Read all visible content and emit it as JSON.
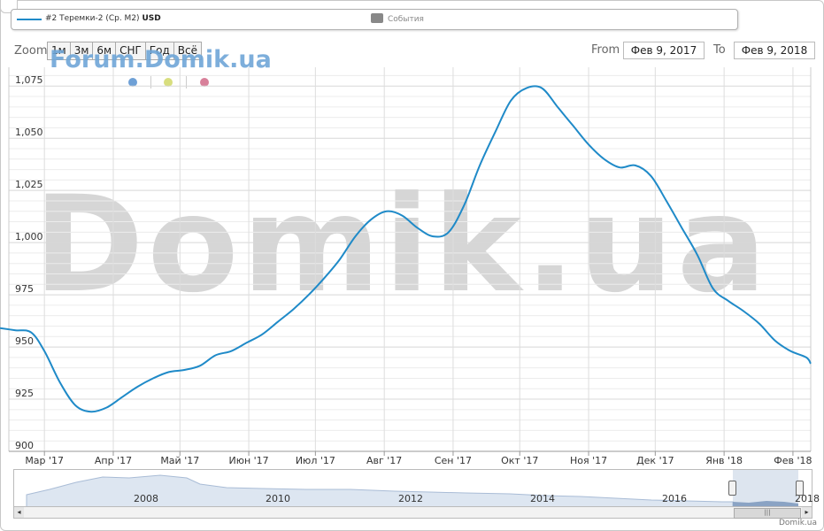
{
  "legend": {
    "series_label": "#2 Теремки-2 (Ср. М2)",
    "series_currency": "USD",
    "events_label": "События"
  },
  "zoom": {
    "label": "Zoom",
    "buttons": [
      "1м",
      "3м",
      "6м",
      "СНГ",
      "Год",
      "Всё"
    ]
  },
  "range": {
    "from_label": "From",
    "from_value": "Фев 9, 2017",
    "to_label": "To",
    "to_value": "Фев 9, 2018"
  },
  "watermark": {
    "small": "Forum.Domik.ua",
    "big": "Domik.ua"
  },
  "credit": "Domik.ua",
  "colors": {
    "series": "#1f8ac8",
    "dot_blue": "#6ea0d6",
    "dot_yellow": "#d8de7e",
    "dot_pink": "#d8809a",
    "grid": "#dddddd"
  },
  "navigator": {
    "year_labels": [
      "2008",
      "2010",
      "2012",
      "2014",
      "2016",
      "2018"
    ]
  },
  "chart_data": {
    "type": "line",
    "title": "",
    "xlabel": "",
    "ylabel": "",
    "ylim": [
      900,
      1084
    ],
    "yticks": [
      900,
      925,
      950,
      975,
      1000,
      1025,
      1050,
      1075
    ],
    "ytick_labels": [
      "900",
      "925",
      "950",
      "975",
      "1,000",
      "1,025",
      "1,050",
      "1,075"
    ],
    "xtick_labels": [
      "Мар '17",
      "Апр '17",
      "Май '17",
      "Июн '17",
      "Июл '17",
      "Авг '17",
      "Сен '17",
      "Окт '17",
      "Ноя '17",
      "Дек '17",
      "Янв '18",
      "Фев '18"
    ],
    "xtick_dates": [
      "2017-03-01",
      "2017-04-01",
      "2017-05-01",
      "2017-06-01",
      "2017-07-01",
      "2017-08-01",
      "2017-09-01",
      "2017-10-01",
      "2017-11-01",
      "2017-12-01",
      "2018-01-01",
      "2018-02-01"
    ],
    "xlim": [
      "2017-02-09",
      "2018-02-09"
    ],
    "grid": true,
    "series": [
      {
        "name": "#2 Теремки-2 (Ср. М2)",
        "x": [
          "2017-02-09",
          "2017-02-16",
          "2017-02-23",
          "2017-03-01",
          "2017-03-08",
          "2017-03-15",
          "2017-03-22",
          "2017-03-29",
          "2017-04-05",
          "2017-04-12",
          "2017-04-19",
          "2017-04-26",
          "2017-05-03",
          "2017-05-10",
          "2017-05-17",
          "2017-05-24",
          "2017-05-31",
          "2017-06-07",
          "2017-06-14",
          "2017-06-21",
          "2017-06-28",
          "2017-07-05",
          "2017-07-12",
          "2017-07-19",
          "2017-07-26",
          "2017-08-02",
          "2017-08-09",
          "2017-08-16",
          "2017-08-23",
          "2017-08-30",
          "2017-09-06",
          "2017-09-13",
          "2017-09-20",
          "2017-09-27",
          "2017-10-04",
          "2017-10-11",
          "2017-10-18",
          "2017-10-25",
          "2017-11-01",
          "2017-11-08",
          "2017-11-15",
          "2017-11-22",
          "2017-11-29",
          "2017-12-06",
          "2017-12-13",
          "2017-12-20",
          "2017-12-27",
          "2018-01-03",
          "2018-01-10",
          "2018-01-17",
          "2018-01-24",
          "2018-01-31",
          "2018-02-07",
          "2018-02-09"
        ],
        "y": [
          959,
          958,
          957,
          948,
          933,
          922,
          919,
          921,
          926,
          931,
          935,
          938,
          939,
          941,
          946,
          948,
          952,
          956,
          962,
          968,
          975,
          983,
          992,
          1003,
          1011,
          1015,
          1013,
          1007,
          1003,
          1005,
          1018,
          1037,
          1053,
          1068,
          1074,
          1074,
          1065,
          1056,
          1047,
          1040,
          1036,
          1037,
          1032,
          1020,
          1007,
          994,
          978,
          972,
          967,
          961,
          953,
          948,
          945,
          942
        ]
      }
    ]
  }
}
